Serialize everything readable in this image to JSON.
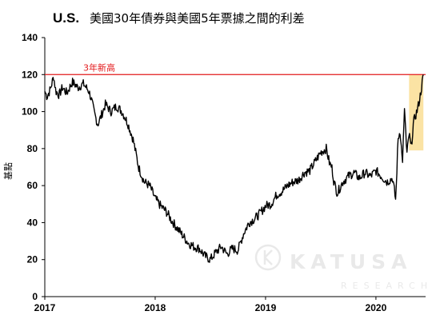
{
  "chart_data": {
    "type": "line",
    "title_lead": "U.S.",
    "title": "美國30年債券與美國5年票據之間的利差",
    "ylabel": "基點",
    "xlabel": "",
    "xlim": [
      2017.0,
      2020.45
    ],
    "ylim": [
      0,
      140
    ],
    "yticks": [
      0,
      20,
      40,
      60,
      80,
      100,
      120,
      140
    ],
    "xticks": [
      {
        "value": 2017,
        "label": "2017"
      },
      {
        "value": 2018,
        "label": "2018"
      },
      {
        "value": 2019,
        "label": "2019"
      },
      {
        "value": 2020,
        "label": "2020"
      }
    ],
    "grid": false,
    "legend": "none",
    "reference_line": {
      "value": 120,
      "label": "3年新高",
      "color": "#e31a1c"
    },
    "highlight": {
      "x_start": 2020.3,
      "x_end": 2020.43,
      "y_start": 79,
      "y_end": 120,
      "color": "#fbe3a4"
    },
    "series": [
      {
        "color": "#000000",
        "x": [
          2017.0,
          2017.02,
          2017.05,
          2017.08,
          2017.1,
          2017.13,
          2017.16,
          2017.2,
          2017.25,
          2017.3,
          2017.35,
          2017.4,
          2017.42,
          2017.45,
          2017.48,
          2017.5,
          2017.55,
          2017.6,
          2017.65,
          2017.7,
          2017.75,
          2017.8,
          2017.85,
          2017.9,
          2017.95,
          2018.0,
          2018.05,
          2018.1,
          2018.15,
          2018.2,
          2018.25,
          2018.3,
          2018.35,
          2018.4,
          2018.45,
          2018.5,
          2018.55,
          2018.6,
          2018.65,
          2018.7,
          2018.75,
          2018.8,
          2018.85,
          2018.9,
          2018.95,
          2019.0,
          2019.05,
          2019.1,
          2019.15,
          2019.2,
          2019.25,
          2019.3,
          2019.35,
          2019.4,
          2019.45,
          2019.5,
          2019.55,
          2019.58,
          2019.6,
          2019.62,
          2019.65,
          2019.7,
          2019.75,
          2019.8,
          2019.85,
          2019.9,
          2019.95,
          2020.0,
          2020.05,
          2020.1,
          2020.15,
          2020.17,
          2020.18,
          2020.2,
          2020.22,
          2020.24,
          2020.26,
          2020.28,
          2020.3,
          2020.32,
          2020.34,
          2020.36,
          2020.38,
          2020.4,
          2020.42,
          2020.43
        ],
        "values": [
          111,
          108,
          112,
          119,
          111,
          109,
          113,
          110,
          116,
          113,
          115,
          111,
          107,
          99,
          93,
          96,
          104,
          100,
          103,
          100,
          94,
          85,
          70,
          62,
          60,
          53,
          49,
          46,
          41,
          37,
          33,
          29,
          27,
          26,
          22,
          20,
          24,
          27,
          23,
          26,
          25,
          34,
          40,
          42,
          45,
          49,
          50,
          55,
          57,
          60,
          62,
          63,
          67,
          68,
          73,
          78,
          80,
          72,
          70,
          62,
          56,
          62,
          65,
          67,
          64,
          67,
          65,
          68,
          65,
          62,
          64,
          56,
          52,
          85,
          90,
          72,
          102,
          76,
          88,
          80,
          94,
          98,
          102,
          108,
          116,
          120
        ]
      }
    ]
  },
  "watermark": {
    "brand": "KATUSA",
    "sub": "RESEARCH"
  }
}
